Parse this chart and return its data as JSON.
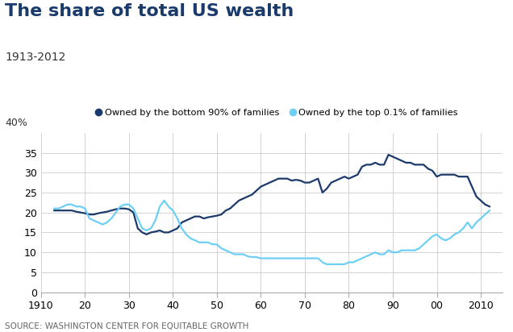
{
  "title": "The share of total US wealth",
  "subtitle": "1913-2012",
  "source": "SOURCE: WASHINGTON CENTER FOR EQUITABLE GROWTH",
  "background_color": "#ffffff",
  "grid_color": "#cccccc",
  "ylabel_text": "40%",
  "legend": [
    {
      "label": "Owned by the bottom 90% of families",
      "color": "#1b3a6b"
    },
    {
      "label": "Owned by the top 0.1% of families",
      "color": "#6ecff6"
    }
  ],
  "bottom90_x": [
    1913,
    1914,
    1915,
    1916,
    1917,
    1918,
    1919,
    1920,
    1921,
    1922,
    1923,
    1924,
    1925,
    1926,
    1927,
    1928,
    1929,
    1930,
    1931,
    1932,
    1933,
    1934,
    1935,
    1936,
    1937,
    1938,
    1939,
    1940,
    1941,
    1942,
    1943,
    1944,
    1945,
    1946,
    1947,
    1948,
    1949,
    1950,
    1951,
    1952,
    1953,
    1954,
    1955,
    1956,
    1957,
    1958,
    1959,
    1960,
    1961,
    1962,
    1963,
    1964,
    1965,
    1966,
    1967,
    1968,
    1969,
    1970,
    1971,
    1972,
    1973,
    1974,
    1975,
    1976,
    1977,
    1978,
    1979,
    1980,
    1981,
    1982,
    1983,
    1984,
    1985,
    1986,
    1987,
    1988,
    1989,
    1990,
    1991,
    1992,
    1993,
    1994,
    1995,
    1996,
    1997,
    1998,
    1999,
    2000,
    2001,
    2002,
    2003,
    2004,
    2005,
    2006,
    2007,
    2008,
    2009,
    2010,
    2011,
    2012
  ],
  "bottom90_y": [
    20.5,
    20.5,
    20.5,
    20.5,
    20.5,
    20.2,
    20.0,
    19.8,
    19.5,
    19.5,
    19.8,
    20.0,
    20.2,
    20.5,
    20.8,
    21.0,
    21.0,
    20.8,
    20.0,
    16.0,
    15.0,
    14.5,
    15.0,
    15.2,
    15.5,
    15.0,
    15.0,
    15.5,
    16.0,
    17.5,
    18.0,
    18.5,
    19.0,
    19.0,
    18.5,
    18.8,
    19.0,
    19.2,
    19.5,
    20.5,
    21.0,
    22.0,
    23.0,
    23.5,
    24.0,
    24.5,
    25.5,
    26.5,
    27.0,
    27.5,
    28.0,
    28.5,
    28.5,
    28.5,
    28.0,
    28.2,
    28.0,
    27.5,
    27.5,
    28.0,
    28.5,
    25.0,
    26.0,
    27.5,
    28.0,
    28.5,
    29.0,
    28.5,
    29.0,
    29.5,
    31.5,
    32.0,
    32.0,
    32.5,
    32.0,
    32.0,
    34.5,
    34.0,
    33.5,
    33.0,
    32.5,
    32.5,
    32.0,
    32.0,
    32.0,
    31.0,
    30.5,
    29.0,
    29.5,
    29.5,
    29.5,
    29.5,
    29.0,
    29.0,
    29.0,
    26.5,
    24.0,
    23.0,
    22.0,
    21.5
  ],
  "top01_x": [
    1913,
    1914,
    1915,
    1916,
    1917,
    1918,
    1919,
    1920,
    1921,
    1922,
    1923,
    1924,
    1925,
    1926,
    1927,
    1928,
    1929,
    1930,
    1931,
    1932,
    1933,
    1934,
    1935,
    1936,
    1937,
    1938,
    1939,
    1940,
    1941,
    1942,
    1943,
    1944,
    1945,
    1946,
    1947,
    1948,
    1949,
    1950,
    1951,
    1952,
    1953,
    1954,
    1955,
    1956,
    1957,
    1958,
    1959,
    1960,
    1961,
    1962,
    1963,
    1964,
    1965,
    1966,
    1967,
    1968,
    1969,
    1970,
    1971,
    1972,
    1973,
    1974,
    1975,
    1976,
    1977,
    1978,
    1979,
    1980,
    1981,
    1982,
    1983,
    1984,
    1985,
    1986,
    1987,
    1988,
    1989,
    1990,
    1991,
    1992,
    1993,
    1994,
    1995,
    1996,
    1997,
    1998,
    1999,
    2000,
    2001,
    2002,
    2003,
    2004,
    2005,
    2006,
    2007,
    2008,
    2009,
    2010,
    2011,
    2012
  ],
  "top01_y": [
    21.0,
    21.0,
    21.5,
    22.0,
    22.0,
    21.5,
    21.5,
    21.0,
    18.5,
    18.0,
    17.5,
    17.0,
    17.5,
    18.5,
    20.0,
    21.5,
    22.0,
    22.0,
    21.0,
    18.5,
    16.0,
    15.5,
    16.0,
    18.0,
    21.5,
    23.0,
    21.5,
    20.5,
    18.5,
    16.0,
    14.5,
    13.5,
    13.0,
    12.5,
    12.5,
    12.5,
    12.0,
    12.0,
    11.0,
    10.5,
    10.0,
    9.5,
    9.5,
    9.5,
    9.0,
    8.8,
    8.8,
    8.5,
    8.5,
    8.5,
    8.5,
    8.5,
    8.5,
    8.5,
    8.5,
    8.5,
    8.5,
    8.5,
    8.5,
    8.5,
    8.5,
    7.5,
    7.0,
    7.0,
    7.0,
    7.0,
    7.0,
    7.5,
    7.5,
    8.0,
    8.5,
    9.0,
    9.5,
    10.0,
    9.5,
    9.5,
    10.5,
    10.0,
    10.0,
    10.5,
    10.5,
    10.5,
    10.5,
    11.0,
    12.0,
    13.0,
    14.0,
    14.5,
    13.5,
    13.0,
    13.5,
    14.5,
    15.0,
    16.0,
    17.5,
    16.0,
    17.5,
    18.5,
    19.5,
    20.5
  ],
  "xlim": [
    1910,
    2015
  ],
  "ylim": [
    0,
    40
  ],
  "xticks": [
    1910,
    1920,
    1930,
    1940,
    1950,
    1960,
    1970,
    1980,
    1990,
    2000,
    2010
  ],
  "xticklabels": [
    "1910",
    "20",
    "30",
    "40",
    "50",
    "60",
    "70",
    "80",
    "90",
    "00",
    "2010"
  ],
  "yticks": [
    0,
    5,
    10,
    15,
    20,
    25,
    30,
    35
  ],
  "line_width": 1.6,
  "dark_blue": "#1b3a6b",
  "light_blue": "#6ecff6",
  "title_fontsize": 16,
  "subtitle_fontsize": 10,
  "tick_fontsize": 9,
  "source_fontsize": 7.5
}
